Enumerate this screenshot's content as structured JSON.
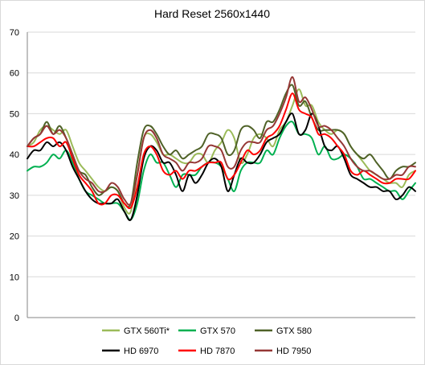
{
  "chart_data": {
    "type": "line",
    "title": "Hard Reset 2560x1440",
    "xlabel": "",
    "ylabel": "",
    "ylim": [
      0,
      70
    ],
    "yticks": [
      0,
      10,
      20,
      30,
      40,
      50,
      60,
      70
    ],
    "grid": "horizontal",
    "legend_position": "bottom",
    "x": [
      0,
      1,
      2,
      3,
      4,
      5,
      6,
      7,
      8,
      9,
      10,
      11,
      12,
      13,
      14,
      15,
      16,
      17,
      18,
      19,
      20,
      21,
      22,
      23,
      24,
      25,
      26,
      27,
      28,
      29,
      30,
      31,
      32,
      33,
      34,
      35,
      36,
      37,
      38,
      39,
      40,
      41,
      42,
      43,
      44,
      45,
      46,
      47,
      48,
      49,
      50,
      51,
      52,
      53,
      54,
      55,
      56,
      57,
      58,
      59,
      60
    ],
    "series": [
      {
        "name": "GTX 560Ti*",
        "color": "#9bbb59",
        "values": [
          42,
          43,
          46,
          47,
          46,
          45,
          46,
          42,
          38,
          36,
          34,
          32,
          31,
          32,
          31,
          27,
          26,
          35,
          44,
          45,
          43,
          40,
          40,
          39,
          38,
          38,
          40,
          40,
          38,
          41,
          43,
          46,
          44,
          38,
          40,
          44,
          45,
          44,
          42,
          46,
          48,
          52,
          56,
          52,
          52,
          48,
          46,
          45,
          46,
          45,
          42,
          40,
          38,
          36,
          35,
          34,
          33,
          33,
          32,
          35,
          36
        ],
        "labels": []
      },
      {
        "name": "GTX 570",
        "color": "#00b050",
        "values": [
          36,
          37,
          37,
          38,
          40,
          39,
          41,
          38,
          34,
          31,
          30,
          29,
          28,
          28,
          28,
          26,
          24,
          28,
          36,
          40,
          38,
          38,
          35,
          32,
          35,
          35,
          35,
          37,
          38,
          38,
          37,
          34,
          31,
          36,
          38,
          38,
          38,
          41,
          40,
          44,
          47,
          48,
          45,
          45,
          44,
          40,
          42,
          39,
          39,
          40,
          39,
          37,
          34,
          34,
          33,
          32,
          31,
          31,
          29,
          31,
          33
        ],
        "labels": []
      },
      {
        "name": "GTX 580",
        "color": "#4f6228",
        "values": [
          42,
          44,
          45,
          48,
          45,
          47,
          44,
          40,
          36,
          35,
          32,
          30,
          31,
          32,
          31,
          28,
          28,
          38,
          46,
          47,
          45,
          42,
          40,
          41,
          39,
          40,
          41,
          42,
          45,
          45,
          44,
          40,
          41,
          46,
          47,
          46,
          44,
          48,
          48,
          51,
          55,
          57,
          52,
          53,
          49,
          46,
          46,
          46,
          46,
          45,
          42,
          40,
          39,
          40,
          38,
          36,
          34,
          36,
          37,
          37,
          38
        ],
        "labels": []
      },
      {
        "name": "HD 6970",
        "color": "#000000",
        "values": [
          39,
          41,
          41,
          43,
          42,
          43,
          41,
          37,
          34,
          31,
          29,
          28,
          28,
          28,
          29,
          26,
          24,
          30,
          39,
          42,
          41,
          38,
          38,
          35,
          31,
          35,
          33,
          35,
          38,
          39,
          37,
          31,
          35,
          39,
          38,
          38,
          40,
          43,
          44,
          45,
          48,
          50,
          45,
          46,
          50,
          47,
          42,
          41,
          42,
          39,
          35,
          34,
          33,
          32,
          32,
          31,
          31,
          29,
          30,
          32,
          31
        ],
        "labels": []
      },
      {
        "name": "HD 7870",
        "color": "#ff0000",
        "values": [
          42,
          42,
          43,
          44,
          44,
          42,
          43,
          39,
          35,
          33,
          31,
          28,
          28,
          30,
          30,
          28,
          27,
          32,
          40,
          42,
          40,
          36,
          35,
          36,
          34,
          36,
          36,
          37,
          38,
          38,
          38,
          34,
          35,
          38,
          41,
          40,
          41,
          44,
          45,
          47,
          51,
          55,
          51,
          50,
          49,
          45,
          45,
          44,
          42,
          40,
          36,
          35,
          36,
          35,
          34,
          33,
          33,
          34,
          34,
          34,
          36
        ],
        "labels": []
      },
      {
        "name": "HD 7950",
        "color": "#953735",
        "values": [
          42,
          44,
          45,
          47,
          45,
          46,
          44,
          40,
          36,
          34,
          33,
          31,
          31,
          33,
          32,
          29,
          28,
          35,
          44,
          46,
          44,
          40,
          39,
          38,
          36,
          38,
          38,
          39,
          42,
          42,
          41,
          37,
          37,
          41,
          43,
          43,
          43,
          46,
          47,
          50,
          54,
          59,
          53,
          54,
          51,
          47,
          47,
          46,
          44,
          42,
          39,
          37,
          36,
          36,
          35,
          34,
          34,
          35,
          35,
          37,
          37
        ],
        "labels": []
      }
    ]
  }
}
